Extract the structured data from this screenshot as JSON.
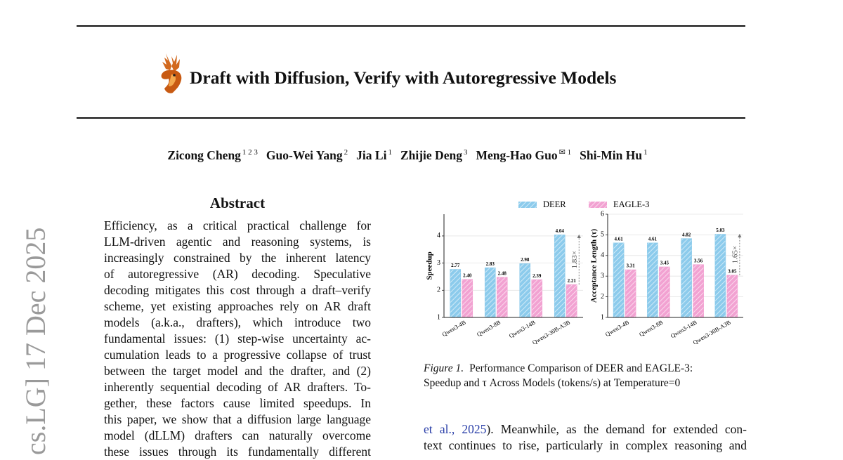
{
  "arxiv_stamp": "cs.LG]  17 Dec 2025",
  "header": {
    "title": "Draft with Diffusion, Verify with Autoregressive Models",
    "authors": [
      {
        "name": "Zicong Cheng",
        "affiliations": "1 2 3"
      },
      {
        "name": "Guo-Wei Yang",
        "affiliations": "2"
      },
      {
        "name": "Jia Li",
        "affiliations": "1"
      },
      {
        "name": "Zhijie Deng",
        "affiliations": "3"
      },
      {
        "name": "Meng-Hao Guo",
        "affiliations": "✉ 1"
      },
      {
        "name": "Shi-Min Hu",
        "affiliations": "1"
      }
    ]
  },
  "abstract": {
    "heading": "Abstract",
    "lines": [
      "Efficiency, as a critical practical challenge for",
      "LLM-driven agentic and reasoning systems, is",
      "increasingly constrained by the inherent latency",
      "of autoregressive (AR) decoding.  Speculative",
      "decoding mitigates this cost through a draft–verify",
      "scheme, yet existing approaches rely on AR draft",
      "models (a.k.a., drafters), which introduce two",
      "fundamental issues: (1) step-wise uncertainty ac-",
      "cumulation leads to a progressive collapse of trust",
      "between the target model and the drafter, and (2)",
      "inherently sequential decoding of AR drafters. To-",
      "gether, these factors cause limited speedups. In",
      "this paper, we show that a diffusion large language",
      "model (dLLM) drafters can naturally overcome",
      "these issues through its fundamentally different"
    ]
  },
  "figure": {
    "label": "Figure 1.",
    "caption_lines": [
      "Performance Comparison of DEER and EAGLE-3:",
      "Speedup and τ Across Models (tokens/s) at Temperature=0"
    ]
  },
  "body": {
    "link": "et al., 2025",
    "lines": [
      "). Meanwhile, as the demand for extended con-",
      "text continues to rise, particularly in complex reasoning and"
    ]
  },
  "chart_data": [
    {
      "type": "bar",
      "y_label": "Speedup",
      "categories": [
        "Qwen3-4B",
        "Qwen3-8B",
        "Qwen3-14B",
        "Qwen3-30B-A3B"
      ],
      "series": [
        {
          "name": "DEER",
          "color": "#8ccbec",
          "values": [
            2.77,
            2.83,
            2.98,
            4.04
          ],
          "value_labels": [
            "2.77",
            "2.83",
            "2.98",
            "4.04"
          ]
        },
        {
          "name": "EAGLE-3",
          "color": "#f2a2d2",
          "values": [
            2.4,
            2.48,
            2.39,
            2.21
          ],
          "value_labels": [
            "2.40",
            "2.48",
            "2.39",
            "2.21"
          ]
        }
      ],
      "ylim": [
        1,
        4.8
      ],
      "yticks": [
        1,
        2,
        3,
        4
      ],
      "grid": true,
      "annotation": "1.83×"
    },
    {
      "type": "bar",
      "y_label": "Acceptance Length (τ)",
      "categories": [
        "Qwen3-4B",
        "Qwen3-8B",
        "Qwen3-14B",
        "Qwen3-30B-A3B"
      ],
      "series": [
        {
          "color": "#8ccbec",
          "values": [
            4.61,
            4.61,
            4.82,
            5.03
          ],
          "value_labels": [
            "4.61",
            "4.61",
            "4.82",
            "5.03"
          ]
        },
        {
          "color": "#f2a2d2",
          "values": [
            3.31,
            3.45,
            3.56,
            3.05
          ],
          "value_labels": [
            "3.31",
            "3.45",
            "3.56",
            "3.05"
          ]
        }
      ],
      "ylim": [
        1,
        6
      ],
      "yticks": [
        1,
        2,
        3,
        4,
        5,
        6
      ],
      "grid": true,
      "annotation": "1.65×"
    }
  ]
}
